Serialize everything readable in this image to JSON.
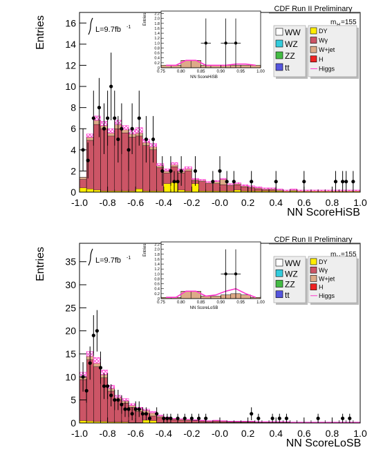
{
  "colors": {
    "ww": "#ffffff",
    "wz": "#33ccdd",
    "zz": "#44bb44",
    "tt": "#5555dd",
    "dy": "#ffee00",
    "wg": "#cc5566",
    "wjet": "#ddaa88",
    "h": "#ee2222",
    "higgs": "#ff33cc",
    "frame": "#000000"
  },
  "chart_data": [
    {
      "type": "histogram",
      "title": "",
      "xlabel": "NN ScoreHiSB",
      "ylabel": "Entries",
      "xlim": [
        -1.0,
        1.0
      ],
      "ylim": [
        0,
        17
      ],
      "xticks": [
        "-1.0",
        "-0.8",
        "-0.6",
        "-0.4",
        "-0.2",
        "-0.0",
        "0.2",
        "0.4",
        "0.6",
        "0.8",
        "1.0"
      ],
      "yticks": [
        "0",
        "2",
        "4",
        "6",
        "8",
        "10",
        "12",
        "14",
        "16"
      ],
      "ytick_values": [
        0,
        2,
        4,
        6,
        8,
        10,
        12,
        14,
        16
      ],
      "experiment_label": "CDF Run II Preliminary",
      "lumi_label": "L=9.7fb",
      "lumi_unit": "-1",
      "mass_label": "m",
      "mass_sub": "H",
      "mass_value": "=155",
      "bin_width": 0.05,
      "bin_edges_start": -1.0,
      "totals": [
        1.4,
        5.2,
        6.8,
        6.3,
        5.6,
        6.4,
        5.9,
        5.5,
        5.6,
        4.7,
        4.3,
        2.5,
        2.0,
        2.6,
        2.0,
        2.2,
        1.2,
        1.1,
        0.9,
        1.0,
        1.2,
        0.7,
        0.8,
        0.6,
        0.5,
        0.4,
        0.3,
        0.3,
        0.2,
        0.1,
        0.2,
        0.1,
        0.1,
        0.1,
        0.1,
        0.1,
        0.1,
        0.1,
        0.1,
        0.1
      ],
      "dy": [
        0.4,
        0.3,
        0.2,
        0.1,
        0.1,
        0.1,
        0.1,
        0.1,
        0.3,
        0.1,
        0.1,
        0.1,
        0.8,
        0.9,
        0.2,
        0.1,
        0.8,
        0.1,
        0.1,
        0.1,
        0.1,
        0.1,
        0.2,
        0.1,
        0.1,
        0.1,
        0.1,
        0.1,
        0.1,
        0.1,
        0.1,
        0.1,
        0.1,
        0.1,
        0.1,
        0.1,
        0.1,
        0.1,
        0.1,
        0.1
      ],
      "wjet_top": [
        0.2,
        0.3,
        0.4,
        0.3,
        0.3,
        0.4,
        0.3,
        0.3,
        0.3,
        0.3,
        0.3,
        0.2,
        0.2,
        0.2,
        0.2,
        0.2,
        0.1,
        0.1,
        0.1,
        0.2,
        0.5,
        0.1,
        0.1,
        0.1,
        0.1,
        0.1,
        0.1,
        0.1,
        0.1,
        0.0,
        0.1,
        0.0,
        0.0,
        0.0,
        0.0,
        0.0,
        0.0,
        0.0,
        0.0,
        0.0
      ],
      "higgs": [
        1.4,
        5.5,
        7.2,
        6.7,
        6.0,
        6.8,
        6.3,
        5.9,
        6.1,
        5.0,
        4.6,
        2.7,
        2.2,
        2.8,
        2.2,
        2.4,
        1.3,
        1.2,
        1.0,
        1.1,
        1.3,
        0.8,
        0.9,
        0.7,
        0.6,
        0.5,
        0.4,
        0.4,
        0.3,
        0.2,
        0.3,
        0.2,
        0.2,
        0.2,
        0.2,
        0.2,
        0.2,
        0.2,
        0.2,
        0.2
      ],
      "data_points": [
        {
          "x": -0.975,
          "y": 4,
          "err": 2.0
        },
        {
          "x": -0.94,
          "y": 3,
          "err": 1.7
        },
        {
          "x": -0.9,
          "y": 7,
          "err": 2.6
        },
        {
          "x": -0.86,
          "y": 8,
          "err": 2.8
        },
        {
          "x": -0.825,
          "y": 6,
          "err": 2.4
        },
        {
          "x": -0.8,
          "y": 7,
          "err": 2.6
        },
        {
          "x": -0.775,
          "y": 10,
          "err": 3.2
        },
        {
          "x": -0.75,
          "y": 7,
          "err": 2.6
        },
        {
          "x": -0.725,
          "y": 5,
          "err": 2.2
        },
        {
          "x": -0.7,
          "y": 6,
          "err": 2.4
        },
        {
          "x": -0.65,
          "y": 4,
          "err": 2.0
        },
        {
          "x": -0.625,
          "y": 6,
          "err": 2.4
        },
        {
          "x": -0.575,
          "y": 7,
          "err": 2.6
        },
        {
          "x": -0.525,
          "y": 5,
          "err": 2.2
        },
        {
          "x": -0.475,
          "y": 5,
          "err": 2.2
        },
        {
          "x": -0.41,
          "y": 2,
          "err": 1.4
        },
        {
          "x": -0.35,
          "y": 2,
          "err": 1.4
        },
        {
          "x": -0.325,
          "y": 1,
          "err": 1.0
        },
        {
          "x": -0.3,
          "y": 1,
          "err": 1.0
        },
        {
          "x": -0.275,
          "y": 2,
          "err": 1.4
        },
        {
          "x": -0.175,
          "y": 2,
          "err": 1.4
        },
        {
          "x": -0.05,
          "y": 1,
          "err": 1.0
        },
        {
          "x": 0.0,
          "y": 2,
          "err": 1.4
        },
        {
          "x": 0.05,
          "y": 1,
          "err": 1.0
        },
        {
          "x": 0.1,
          "y": 1,
          "err": 1.0
        },
        {
          "x": 0.225,
          "y": 1,
          "err": 1.0
        },
        {
          "x": 0.4,
          "y": 1,
          "err": 1.0
        },
        {
          "x": 0.6,
          "y": 1,
          "err": 1.0
        },
        {
          "x": 0.825,
          "y": 1,
          "err": 1.0
        },
        {
          "x": 0.875,
          "y": 1,
          "err": 1.0
        },
        {
          "x": 0.9,
          "y": 1,
          "err": 1.0
        },
        {
          "x": 0.95,
          "y": 1,
          "err": 1.0
        }
      ],
      "inset": {
        "xlabel": "NN ScoreHiSB",
        "ylabel": "Entries",
        "xlim": [
          0.75,
          1.0
        ],
        "ylim": [
          0,
          2.3
        ],
        "xticks": [
          "0.75",
          "0.80",
          "0.85",
          "0.90",
          "0.95",
          "1.00"
        ],
        "xtick_values": [
          0.75,
          0.8,
          0.85,
          0.9,
          0.95,
          1.0
        ],
        "yticks": [
          "0",
          "0.2",
          "0.4",
          "0.6",
          "0.8",
          "1.0",
          "1.2",
          "1.4",
          "1.6",
          "1.8",
          "2.0",
          "2.2"
        ],
        "ytick_values": [
          0,
          0.2,
          0.4,
          0.6,
          0.8,
          1.0,
          1.2,
          1.4,
          1.6,
          1.8,
          2.0,
          2.2
        ],
        "bin_width": 0.025,
        "bin_edges_start": 0.75,
        "totals": [
          0.1,
          0.1,
          0.3,
          0.3,
          0.1,
          0.1,
          0.1,
          0.1,
          0.1,
          0.1
        ],
        "higgs": [
          0.1,
          0.1,
          0.3,
          0.3,
          0.1,
          0.1,
          0.1,
          0.15,
          0.15,
          0.1
        ],
        "data_points": [
          {
            "x": 0.8625,
            "y": 1.0,
            "err": 1.0
          },
          {
            "x": 0.9125,
            "y": 1.0,
            "err": 1.0
          },
          {
            "x": 0.9375,
            "y": 1.0,
            "err": 1.0
          }
        ]
      }
    },
    {
      "type": "histogram",
      "title": "",
      "xlabel": "NN ScoreLoSB",
      "ylabel": "Entries",
      "xlim": [
        -1.0,
        1.0
      ],
      "ylim": [
        0,
        39
      ],
      "xticks": [
        "-1.0",
        "-0.8",
        "-0.6",
        "-0.4",
        "-0.2",
        "-0.0",
        "0.2",
        "0.4",
        "0.6",
        "0.8",
        "1.0"
      ],
      "yticks": [
        "0",
        "5",
        "10",
        "15",
        "20",
        "25",
        "30",
        "35"
      ],
      "ytick_values": [
        0,
        5,
        10,
        15,
        20,
        25,
        30,
        35
      ],
      "experiment_label": "CDF Run II Preliminary",
      "lumi_label": "L=9.7fb",
      "lumi_unit": "-1",
      "mass_label": "m",
      "mass_sub": "H",
      "mass_value": "=155",
      "bin_width": 0.05,
      "bin_edges_start": -1.0,
      "totals": [
        10.0,
        14.5,
        13.0,
        10.5,
        7.5,
        5.5,
        4.8,
        3.8,
        3.0,
        2.7,
        2.2,
        1.5,
        1.2,
        0.9,
        0.8,
        0.7,
        0.6,
        0.5,
        0.4,
        0.5,
        0.4,
        0.3,
        0.3,
        0.3,
        0.3,
        0.2,
        0.2,
        0.2,
        0.2,
        0.2,
        0.1,
        0.1,
        0.1,
        0.1,
        0.1,
        0.1,
        0.1,
        0.1,
        0.1,
        0.1
      ],
      "dy": [
        0.5,
        0.4,
        0.3,
        0.3,
        0.2,
        0.2,
        0.2,
        0.1,
        0.1,
        0.6,
        0.5,
        0.1,
        0.1,
        0.1,
        0.1,
        0.1,
        0.1,
        0.1,
        0.1,
        0.1,
        0.1,
        0.1,
        0.1,
        0.1,
        0.1,
        0.1,
        0.1,
        0.1,
        0.1,
        0.1,
        0.0,
        0.0,
        0.0,
        0.0,
        0.0,
        0.0,
        0.0,
        0.0,
        0.0,
        0.0
      ],
      "wjet_top": [
        0.6,
        0.8,
        0.8,
        0.7,
        0.6,
        0.5,
        0.5,
        0.4,
        0.5,
        0.6,
        0.7,
        0.3,
        0.2,
        0.2,
        0.2,
        0.2,
        0.1,
        0.1,
        0.1,
        0.1,
        0.1,
        0.1,
        0.1,
        0.1,
        0.1,
        0.1,
        0.1,
        0.1,
        0.1,
        0.1,
        0.0,
        0.0,
        0.0,
        0.0,
        0.0,
        0.0,
        0.0,
        0.0,
        0.0,
        0.0
      ],
      "higgs": [
        11.0,
        15.5,
        14.2,
        11.5,
        8.2,
        6.0,
        5.3,
        4.2,
        3.4,
        3.0,
        2.5,
        1.7,
        1.3,
        1.0,
        0.9,
        0.8,
        0.7,
        0.6,
        0.5,
        0.6,
        0.5,
        0.4,
        0.4,
        0.4,
        0.4,
        0.3,
        0.3,
        0.3,
        0.3,
        0.3,
        0.2,
        0.2,
        0.2,
        0.2,
        0.2,
        0.2,
        0.2,
        0.2,
        0.2,
        0.2
      ],
      "data_points": [
        {
          "x": -0.975,
          "y": 10,
          "err": 3.2
        },
        {
          "x": -0.95,
          "y": 7,
          "err": 2.6
        },
        {
          "x": -0.925,
          "y": 13,
          "err": 3.6
        },
        {
          "x": -0.9,
          "y": 19,
          "err": 4.4
        },
        {
          "x": -0.875,
          "y": 20,
          "err": 4.5
        },
        {
          "x": -0.85,
          "y": 12,
          "err": 3.5
        },
        {
          "x": -0.825,
          "y": 8,
          "err": 2.8
        },
        {
          "x": -0.8,
          "y": 8,
          "err": 2.8
        },
        {
          "x": -0.775,
          "y": 6,
          "err": 2.4
        },
        {
          "x": -0.75,
          "y": 5,
          "err": 2.2
        },
        {
          "x": -0.725,
          "y": 5,
          "err": 2.2
        },
        {
          "x": -0.7,
          "y": 4,
          "err": 2.0
        },
        {
          "x": -0.675,
          "y": 3,
          "err": 1.7
        },
        {
          "x": -0.65,
          "y": 3,
          "err": 1.7
        },
        {
          "x": -0.625,
          "y": 2,
          "err": 1.4
        },
        {
          "x": -0.6,
          "y": 3,
          "err": 1.7
        },
        {
          "x": -0.575,
          "y": 3,
          "err": 1.7
        },
        {
          "x": -0.55,
          "y": 2,
          "err": 1.4
        },
        {
          "x": -0.525,
          "y": 2,
          "err": 1.4
        },
        {
          "x": -0.5,
          "y": 1,
          "err": 1.0
        },
        {
          "x": -0.45,
          "y": 2,
          "err": 1.4
        },
        {
          "x": -0.4,
          "y": 1,
          "err": 1.0
        },
        {
          "x": -0.375,
          "y": 1,
          "err": 1.0
        },
        {
          "x": -0.35,
          "y": 1,
          "err": 1.0
        },
        {
          "x": -0.3,
          "y": 1,
          "err": 1.0
        },
        {
          "x": -0.25,
          "y": 1,
          "err": 1.0
        },
        {
          "x": -0.2,
          "y": 1,
          "err": 1.0
        },
        {
          "x": -0.15,
          "y": 1,
          "err": 1.0
        },
        {
          "x": -0.1,
          "y": 1,
          "err": 1.0
        },
        {
          "x": 0.225,
          "y": 2,
          "err": 1.4
        },
        {
          "x": 0.275,
          "y": 1,
          "err": 1.0
        },
        {
          "x": 0.375,
          "y": 1,
          "err": 1.0
        },
        {
          "x": 0.425,
          "y": 1,
          "err": 1.0
        },
        {
          "x": 0.475,
          "y": 1,
          "err": 1.0
        },
        {
          "x": 0.7,
          "y": 1,
          "err": 1.0
        },
        {
          "x": 0.875,
          "y": 1,
          "err": 1.0
        },
        {
          "x": 0.925,
          "y": 1,
          "err": 1.0
        }
      ],
      "inset": {
        "xlabel": "NN ScoreLoSB",
        "ylabel": "Entries",
        "xlim": [
          0.75,
          1.0
        ],
        "ylim": [
          0,
          2.3
        ],
        "xticks": [
          "0.75",
          "0.80",
          "0.85",
          "0.90",
          "0.95",
          "1.00"
        ],
        "xtick_values": [
          0.75,
          0.8,
          0.85,
          0.9,
          0.95,
          1.0
        ],
        "yticks": [
          "0",
          "0.2",
          "0.4",
          "0.6",
          "0.8",
          "1.0",
          "1.2",
          "1.4",
          "1.6",
          "1.8",
          "2.0",
          "2.2"
        ],
        "ytick_values": [
          0,
          0.2,
          0.4,
          0.6,
          0.8,
          1.0,
          1.2,
          1.4,
          1.6,
          1.8,
          2.0,
          2.2
        ],
        "bin_width": 0.025,
        "bin_edges_start": 0.75,
        "totals": [
          0.05,
          0.05,
          0.3,
          0.3,
          0.1,
          0.1,
          0.15,
          0.2,
          0.15,
          0.05
        ],
        "higgs": [
          0.05,
          0.05,
          0.3,
          0.3,
          0.1,
          0.15,
          0.3,
          0.4,
          0.2,
          0.05
        ],
        "data_points": [
          {
            "x": 0.9125,
            "y": 1.0,
            "err": 1.0
          },
          {
            "x": 0.9375,
            "y": 1.0,
            "err": 1.0
          }
        ]
      }
    }
  ],
  "legend": {
    "left": [
      {
        "key": "ww",
        "label": "WW"
      },
      {
        "key": "wz",
        "label": "WZ"
      },
      {
        "key": "zz",
        "label": "ZZ"
      },
      {
        "key": "tt",
        "label": "tt"
      }
    ],
    "right": [
      {
        "key": "dy",
        "label": "DY"
      },
      {
        "key": "wg",
        "label": "Wγ"
      },
      {
        "key": "wjet",
        "label": "W+jet"
      },
      {
        "key": "h",
        "label": "H"
      },
      {
        "key": "higgs",
        "label": "Higgs",
        "line": true
      }
    ]
  }
}
